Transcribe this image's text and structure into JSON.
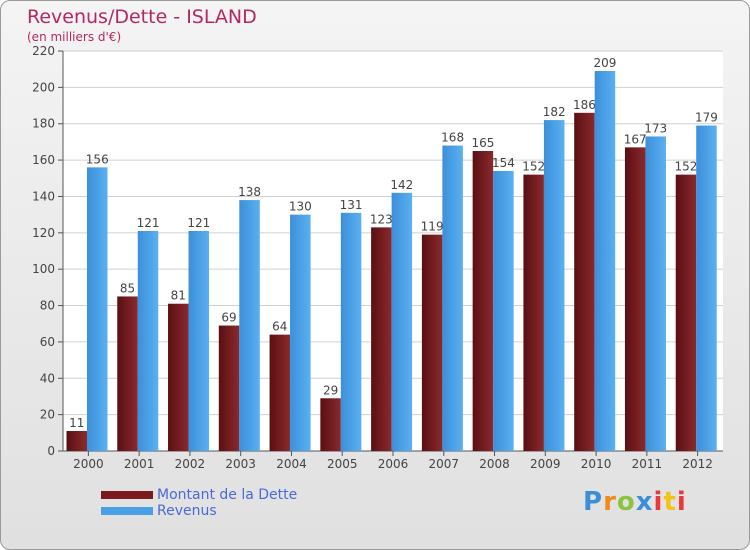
{
  "chart_data": {
    "type": "bar",
    "title": "Revenus/Dette - ISLAND",
    "subtitle": "(en milliers d'€)",
    "categories": [
      "2000",
      "2001",
      "2002",
      "2003",
      "2004",
      "2005",
      "2006",
      "2007",
      "2008",
      "2009",
      "2010",
      "2011",
      "2012"
    ],
    "series": [
      {
        "name": "Montant de la Dette",
        "color": "#7a1a1e",
        "values": [
          11,
          85,
          81,
          69,
          64,
          29,
          123,
          119,
          165,
          152,
          186,
          167,
          152
        ]
      },
      {
        "name": "Revenus",
        "color": "#4aa0e6",
        "values": [
          156,
          121,
          121,
          138,
          130,
          131,
          142,
          168,
          154,
          182,
          209,
          173,
          179
        ]
      }
    ],
    "ylim": [
      0,
      220
    ],
    "yticks": [
      0,
      20,
      40,
      60,
      80,
      100,
      120,
      140,
      160,
      180,
      200,
      220
    ],
    "grid": true,
    "legend_position": "bottom-left"
  },
  "logo": {
    "letters": [
      "P",
      "r",
      "o",
      "x",
      "i",
      "t",
      "i"
    ],
    "icon": "proxiti-logo"
  }
}
